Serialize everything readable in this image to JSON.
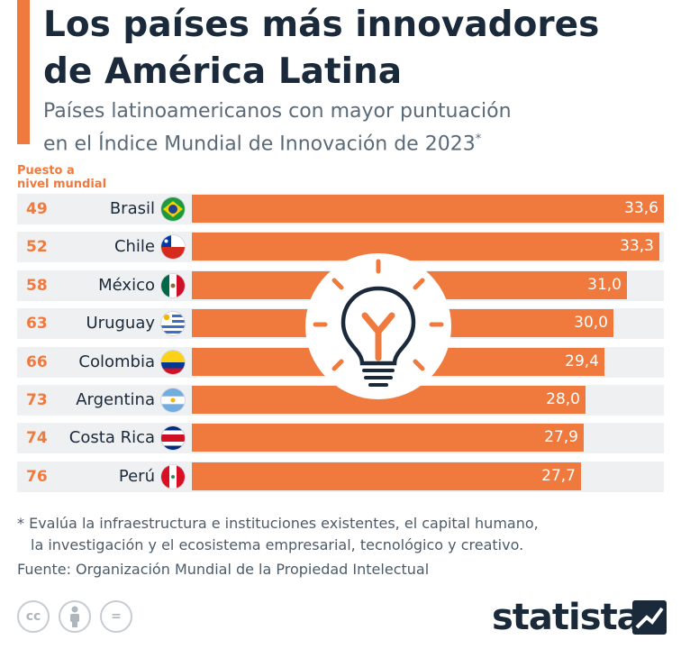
{
  "header": {
    "title_line1": "Los países más innovadores",
    "title_line2": "de América Latina",
    "subtitle_line1": "Países latinoamericanos con mayor puntuación",
    "subtitle_line2": "en el Índice Mundial de Innovación de 2023",
    "subtitle_mark": "*",
    "rank_header_line1": "Puesto a",
    "rank_header_line2": "nivel mundial"
  },
  "chart_data": {
    "type": "bar",
    "orientation": "horizontal",
    "categories": [
      "Brasil",
      "Chile",
      "México",
      "Uruguay",
      "Colombia",
      "Argentina",
      "Costa Rica",
      "Perú"
    ],
    "ranks": [
      "49",
      "52",
      "58",
      "63",
      "66",
      "73",
      "74",
      "76"
    ],
    "values": [
      33.6,
      33.3,
      31.0,
      30.0,
      29.4,
      28.0,
      27.9,
      27.7
    ],
    "value_labels": [
      "33,6",
      "33,3",
      "31,0",
      "30,0",
      "29,4",
      "28,0",
      "27,9",
      "27,7"
    ],
    "xlim": [
      0,
      33.6
    ],
    "bar_color": "#f07a3d",
    "row_band_color": "#eef0f2",
    "grid": false,
    "legend": "none"
  },
  "flags": [
    "brazil-flag-icon",
    "chile-flag-icon",
    "mexico-flag-icon",
    "uruguay-flag-icon",
    "colombia-flag-icon",
    "argentina-flag-icon",
    "costa-rica-flag-icon",
    "peru-flag-icon"
  ],
  "footer": {
    "note_line1": "* Evalúa la infraestructura e instituciones existentes, el capital humano,",
    "note_line2": "la investigación y el ecosistema empresarial, tecnológico y creativo.",
    "source": "Fuente: Organización Mundial de la Propiedad Intelectual",
    "cc_label": "cc",
    "nd_label": "=",
    "brand": "statista"
  },
  "colors": {
    "accent": "#f07a3d",
    "title": "#1b2a3a",
    "subtitle": "#5b6a78"
  }
}
